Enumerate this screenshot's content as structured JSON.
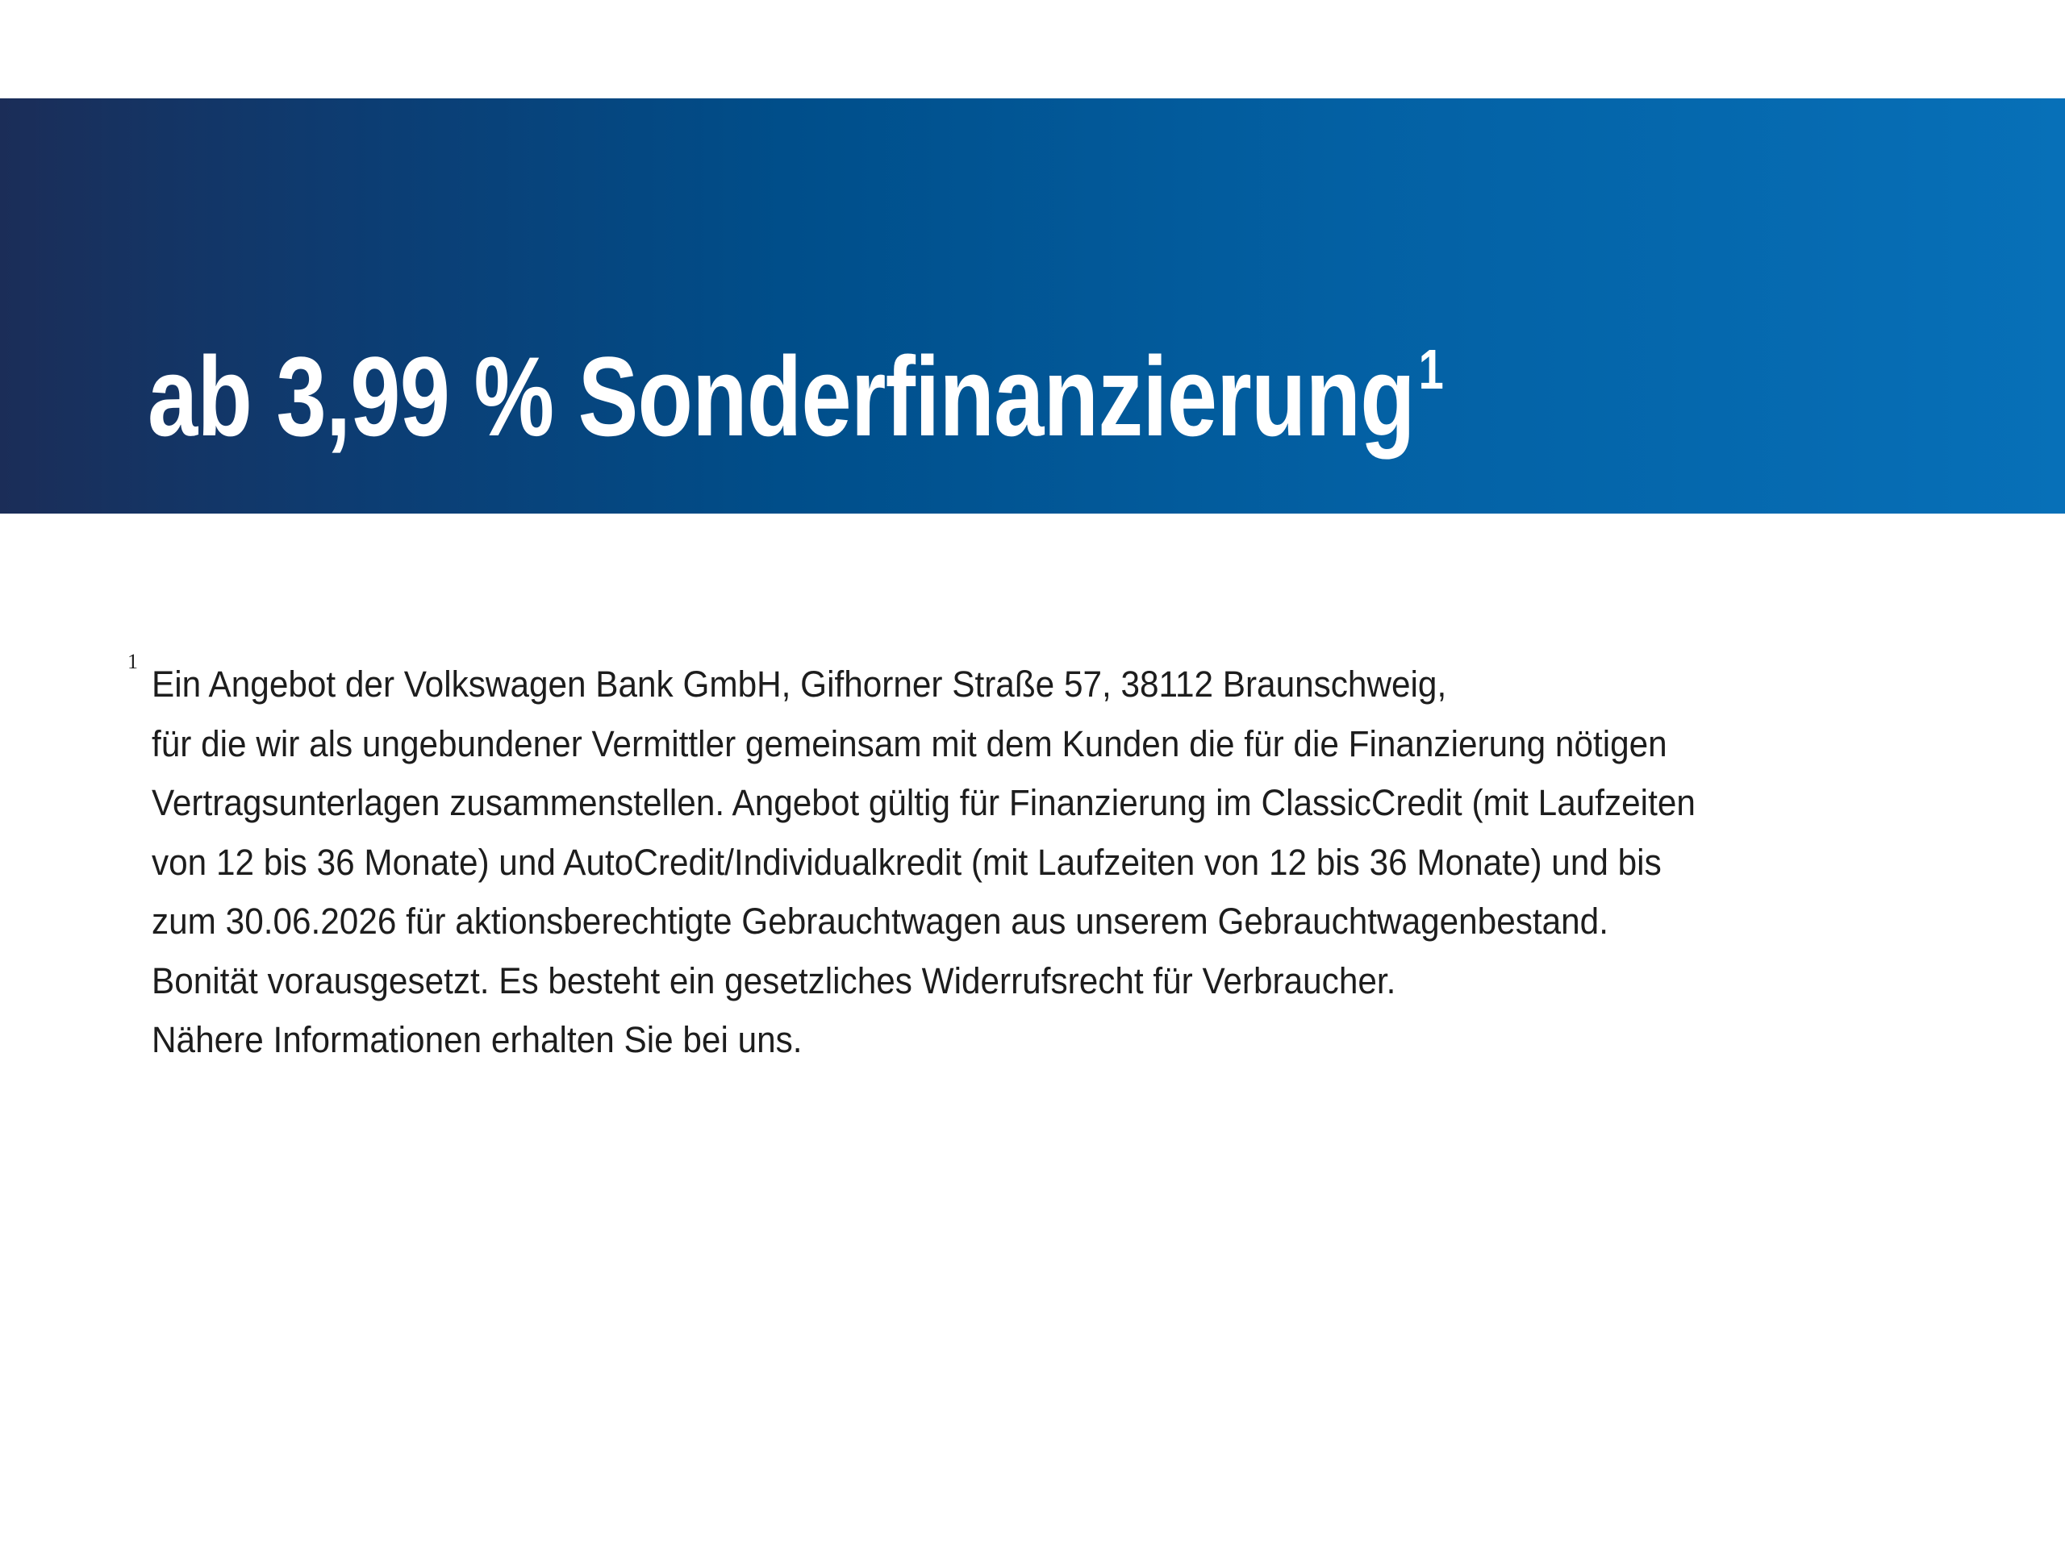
{
  "banner": {
    "title": "ab 3,99 % Sonderfinanzierung",
    "footnote_ref": "1",
    "gradient_colors": [
      "#1b2d58",
      "#004e8a",
      "#0770b8"
    ]
  },
  "footnote": {
    "marker": "1",
    "lines": [
      "Ein Angebot der Volkswagen Bank GmbH, Gifhorner Straße 57, 38112 Braunschweig,",
      "für die wir als ungebundener Vermittler gemeinsam mit dem Kunden die für die Finanzierung nötigen",
      "Vertragsunterlagen zusammenstellen. Angebot gültig für Finanzierung im ClassicCredit (mit Laufzeiten",
      "von 12 bis 36 Monate) und AutoCredit/Individualkredit (mit Laufzeiten von 12 bis 36 Monate) und bis",
      "zum 30.06.2026 für aktionsberechtigte Gebrauchtwagen aus unserem Gebrauchtwagenbestand.",
      "Bonität vorausgesetzt. Es besteht ein gesetzliches Widerrufsrecht für Verbraucher.",
      "Nähere Informationen erhalten Sie bei uns."
    ]
  }
}
